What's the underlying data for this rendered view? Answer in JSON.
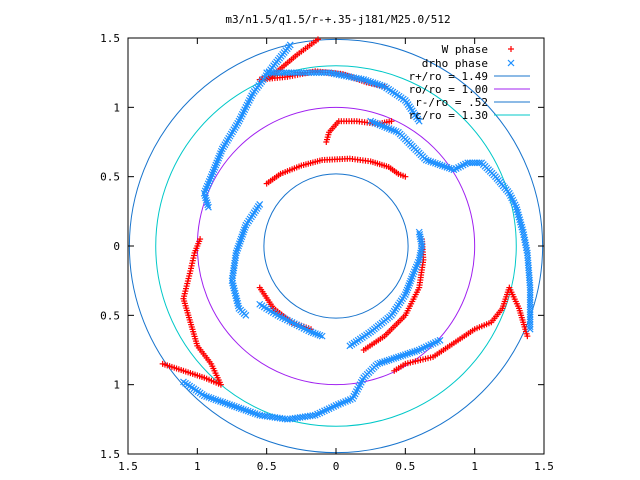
{
  "chart_data": {
    "type": "scatter",
    "title": "m3/n1.5/q1.5/r-+.35-j181/M25.0/512",
    "xlabel": "",
    "ylabel": "",
    "xlim": [
      -1.5,
      1.5
    ],
    "ylim": [
      -1.5,
      1.5
    ],
    "x_ticks": [
      "1.5",
      "1",
      "0.5",
      "0",
      "0.5",
      "1",
      "1.5"
    ],
    "y_ticks": [
      "1.5",
      "1",
      "0.5",
      "0",
      "0.5",
      "1",
      "1.5"
    ],
    "grid": false,
    "legend_position": "top-right",
    "colors": {
      "w_phase": "#ff0000",
      "drho_phase": "#1e90ff",
      "r_plus": "#1874cd",
      "r_o": "#a020f0",
      "r_minus": "#1874cd",
      "r_c": "#00c8c8"
    },
    "circles": [
      {
        "name": "r+/ro = 1.49",
        "radius": 1.49,
        "color": "#1874cd"
      },
      {
        "name": "ro/ro = 1.00",
        "radius": 1.0,
        "color": "#a020f0"
      },
      {
        "name": "r-/ro = .52",
        "radius": 0.52,
        "color": "#1874cd"
      },
      {
        "name": "rc/ro = 1.30",
        "radius": 1.3,
        "color": "#00c8c8"
      }
    ],
    "series": [
      {
        "name": "W phase",
        "marker": "+",
        "color": "#ff0000",
        "arms": [
          [
            [
              -0.13,
              1.49
            ],
            [
              -0.28,
              1.38
            ],
            [
              -0.47,
              1.22
            ],
            [
              -0.55,
              1.2
            ],
            [
              -0.35,
              1.22
            ],
            [
              -0.15,
              1.26
            ],
            [
              0.05,
              1.24
            ],
            [
              0.22,
              1.18
            ],
            [
              0.35,
              1.15
            ]
          ],
          [
            [
              -0.07,
              0.75
            ],
            [
              -0.05,
              0.82
            ],
            [
              0.02,
              0.9
            ],
            [
              0.15,
              0.9
            ],
            [
              0.3,
              0.88
            ],
            [
              0.4,
              0.9
            ]
          ],
          [
            [
              -0.5,
              0.45
            ],
            [
              -0.4,
              0.52
            ],
            [
              -0.25,
              0.58
            ],
            [
              -0.1,
              0.62
            ],
            [
              0.1,
              0.63
            ],
            [
              0.25,
              0.61
            ],
            [
              0.38,
              0.57
            ],
            [
              0.45,
              0.52
            ],
            [
              0.5,
              0.5
            ]
          ],
          [
            [
              -1.25,
              -0.85
            ],
            [
              -1.1,
              -0.9
            ],
            [
              -0.95,
              -0.95
            ],
            [
              -0.83,
              -1.0
            ],
            [
              -0.9,
              -0.85
            ],
            [
              -1.0,
              -0.72
            ],
            [
              -1.05,
              -0.55
            ],
            [
              -1.1,
              -0.38
            ],
            [
              -1.05,
              -0.18
            ],
            [
              -1.02,
              -0.05
            ],
            [
              -0.98,
              0.05
            ]
          ],
          [
            [
              0.42,
              -0.9
            ],
            [
              0.5,
              -0.85
            ],
            [
              0.7,
              -0.8
            ],
            [
              0.88,
              -0.68
            ],
            [
              1.0,
              -0.6
            ],
            [
              1.12,
              -0.55
            ],
            [
              1.2,
              -0.45
            ],
            [
              1.25,
              -0.3
            ],
            [
              1.32,
              -0.45
            ],
            [
              1.38,
              -0.65
            ]
          ],
          [
            [
              -0.55,
              -0.3
            ],
            [
              -0.45,
              -0.45
            ],
            [
              -0.32,
              -0.55
            ],
            [
              -0.18,
              -0.6
            ]
          ],
          [
            [
              0.2,
              -0.75
            ],
            [
              0.35,
              -0.65
            ],
            [
              0.5,
              -0.5
            ],
            [
              0.6,
              -0.3
            ],
            [
              0.63,
              -0.1
            ],
            [
              0.62,
              0.05
            ]
          ]
        ]
      },
      {
        "name": "drho phase",
        "marker": "x",
        "color": "#1e90ff",
        "arms": [
          [
            [
              -0.33,
              1.45
            ],
            [
              -0.45,
              1.3
            ],
            [
              -0.6,
              1.1
            ],
            [
              -0.7,
              0.9
            ],
            [
              -0.82,
              0.7
            ],
            [
              -0.9,
              0.5
            ],
            [
              -0.95,
              0.38
            ],
            [
              -0.92,
              0.28
            ]
          ],
          [
            [
              -0.5,
              1.25
            ],
            [
              -0.25,
              1.25
            ],
            [
              -0.05,
              1.25
            ],
            [
              0.2,
              1.2
            ],
            [
              0.35,
              1.15
            ],
            [
              0.5,
              1.05
            ],
            [
              0.6,
              0.9
            ]
          ],
          [
            [
              0.25,
              0.9
            ],
            [
              0.45,
              0.82
            ],
            [
              0.65,
              0.62
            ],
            [
              0.85,
              0.55
            ],
            [
              0.95,
              0.6
            ],
            [
              1.05,
              0.6
            ],
            [
              1.15,
              0.5
            ],
            [
              1.25,
              0.38
            ],
            [
              1.3,
              0.28
            ],
            [
              1.35,
              0.1
            ],
            [
              1.38,
              -0.05
            ],
            [
              1.4,
              -0.3
            ],
            [
              1.4,
              -0.6
            ]
          ],
          [
            [
              -0.55,
              0.3
            ],
            [
              -0.65,
              0.15
            ],
            [
              -0.72,
              -0.05
            ],
            [
              -0.75,
              -0.25
            ],
            [
              -0.7,
              -0.45
            ],
            [
              -0.65,
              -0.5
            ]
          ],
          [
            [
              -1.1,
              -0.98
            ],
            [
              -0.95,
              -1.08
            ],
            [
              -0.75,
              -1.15
            ],
            [
              -0.55,
              -1.22
            ],
            [
              -0.35,
              -1.25
            ],
            [
              -0.15,
              -1.22
            ],
            [
              0.0,
              -1.15
            ],
            [
              0.12,
              -1.1
            ],
            [
              0.2,
              -0.95
            ],
            [
              0.3,
              -0.85
            ],
            [
              0.45,
              -0.8
            ],
            [
              0.6,
              -0.75
            ],
            [
              0.75,
              -0.68
            ]
          ],
          [
            [
              0.1,
              -0.72
            ],
            [
              0.25,
              -0.62
            ],
            [
              0.4,
              -0.5
            ],
            [
              0.5,
              -0.35
            ],
            [
              0.55,
              -0.22
            ],
            [
              0.6,
              -0.1
            ],
            [
              0.62,
              0.0
            ],
            [
              0.6,
              0.1
            ]
          ],
          [
            [
              -0.55,
              -0.42
            ],
            [
              -0.42,
              -0.5
            ],
            [
              -0.3,
              -0.56
            ],
            [
              -0.18,
              -0.62
            ],
            [
              -0.1,
              -0.65
            ]
          ]
        ]
      }
    ]
  }
}
